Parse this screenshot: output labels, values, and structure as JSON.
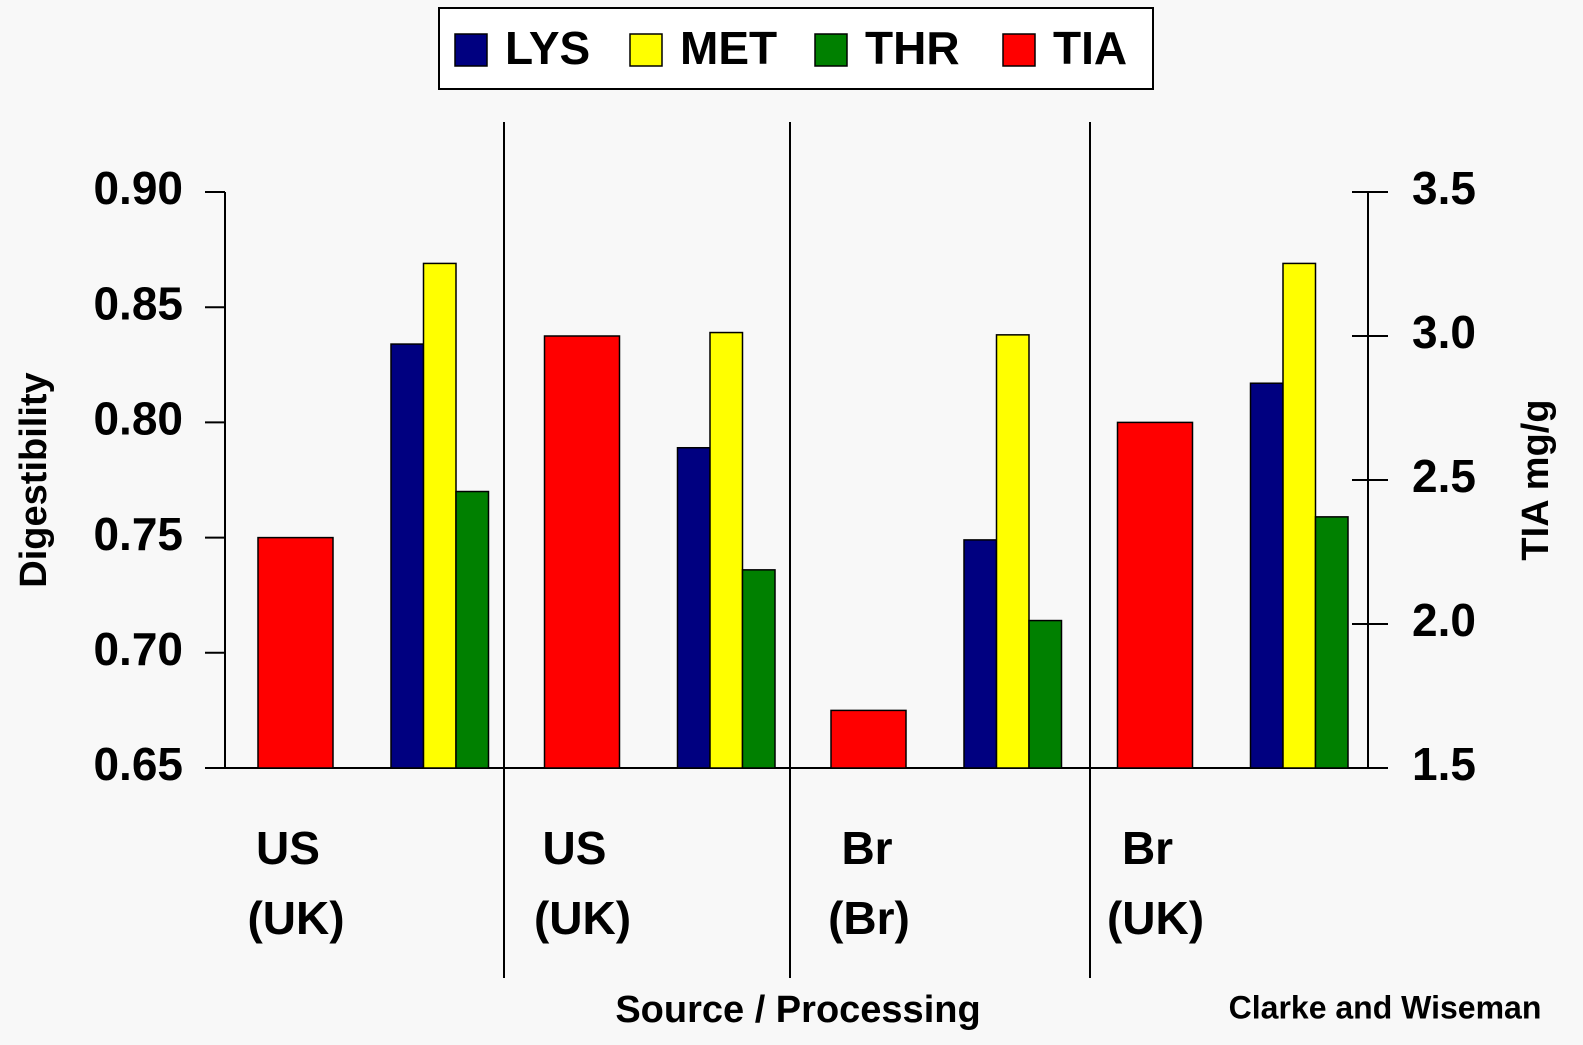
{
  "chart_data": {
    "type": "bar",
    "categories": [
      [
        "US",
        "(UK)"
      ],
      [
        "US",
        "(UK)"
      ],
      [
        "Br",
        "(Br)"
      ],
      [
        "Br",
        "(UK)"
      ]
    ],
    "series": [
      {
        "name": "LYS",
        "color": "#000080",
        "values": [
          0.834,
          0.789,
          0.749,
          0.817
        ]
      },
      {
        "name": "MET",
        "color": "#ffff00",
        "values": [
          0.869,
          0.839,
          0.838,
          0.869
        ]
      },
      {
        "name": "THR",
        "color": "#008000",
        "values": [
          0.77,
          0.736,
          0.714,
          0.759
        ]
      },
      {
        "name": "TIA",
        "color": "#ff0000",
        "axis": "y2",
        "values": [
          2.3,
          3.0,
          1.7,
          2.7
        ]
      }
    ],
    "y_label": "Digestibility",
    "y2_label": "TIA mg/g",
    "x_label": "Source / Processing",
    "annotation": "Clarke and Wiseman",
    "ylim": [
      0.65,
      0.9
    ],
    "yticks": [
      0.65,
      {
        "value": 0.7,
        "label": "0.70"
      },
      0.75,
      {
        "value": 0.8,
        "label": "0.80"
      },
      0.85,
      {
        "value": 0.9,
        "label": "0.90"
      }
    ],
    "y2lim": [
      1.5,
      3.5
    ],
    "y2ticks": [
      1.5,
      {
        "value": 2,
        "label": "2.0"
      },
      2.5,
      {
        "value": 3,
        "label": "3.0"
      },
      3.5
    ],
    "legend": "top"
  }
}
